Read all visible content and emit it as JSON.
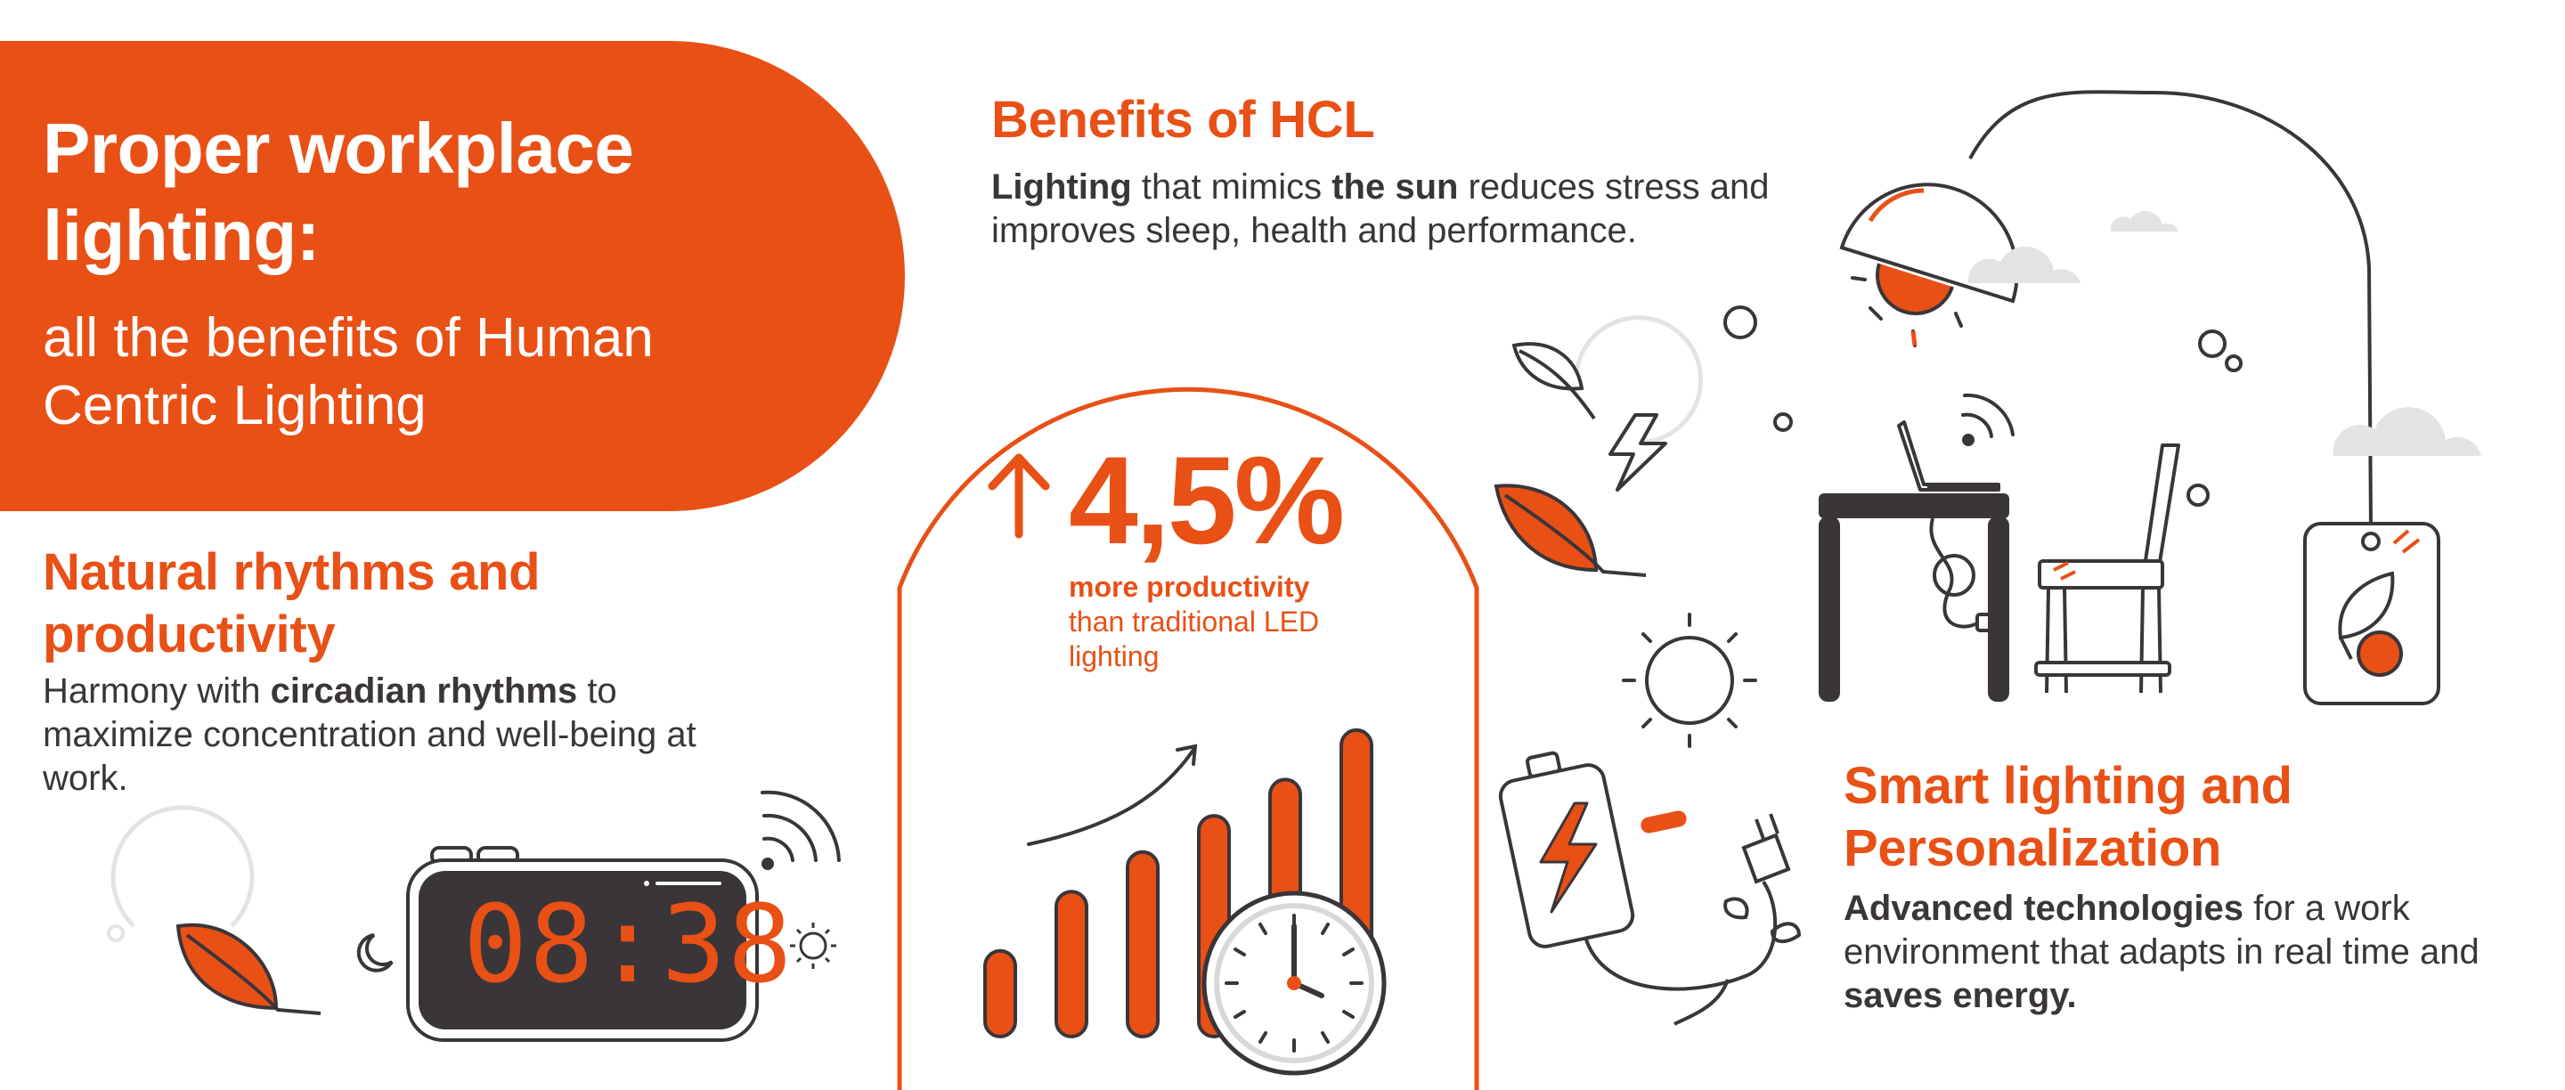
{
  "hero": {
    "title": "Proper workplace lighting:",
    "subtitle": "all the benefits of Human Centric Lighting"
  },
  "benefits": {
    "title": "Benefits of HCL",
    "text_parts": [
      {
        "text": "Lighting",
        "bold": true
      },
      {
        "text": " that mimics ",
        "bold": false
      },
      {
        "text": "the sun",
        "bold": true
      },
      {
        "text": " reduces stress and improves sleep, health and performance.",
        "bold": false
      }
    ]
  },
  "rhythms": {
    "title": "Natural rhythms and productivity",
    "text_parts": [
      {
        "text": "Harmony with ",
        "bold": false
      },
      {
        "text": "circadian rhythms",
        "bold": true
      },
      {
        "text": " to maximize concentration and well-being at work.",
        "bold": false
      }
    ]
  },
  "stat": {
    "value": "4,5%",
    "arrow_icon": "arrow-up-icon",
    "caption_bold": "more productivity",
    "caption_rest": "than traditional LED lighting",
    "bar_levels": [
      0.26,
      0.44,
      0.56,
      0.67,
      0.78,
      0.93
    ]
  },
  "smart": {
    "title": "Smart lighting and Personalization",
    "text_parts": [
      {
        "text": "Advanced technologies",
        "bold": true
      },
      {
        "text": " for a work environment that adapts in real time and ",
        "bold": false
      },
      {
        "text": "saves energy.",
        "bold": true
      }
    ]
  },
  "alarm_clock": {
    "time": "08:38"
  },
  "colors": {
    "accent": "#e85016",
    "dark": "#3a3539",
    "cloud": "#e3e3e3"
  },
  "icons": [
    "leaf-icon",
    "moon-icon",
    "sun-icon",
    "wifi-icon",
    "lightning-icon",
    "lamp-icon",
    "desk-icon",
    "laptop-icon",
    "chair-icon",
    "plug-icon",
    "battery-icon",
    "cloud-icon",
    "clock-icon"
  ]
}
